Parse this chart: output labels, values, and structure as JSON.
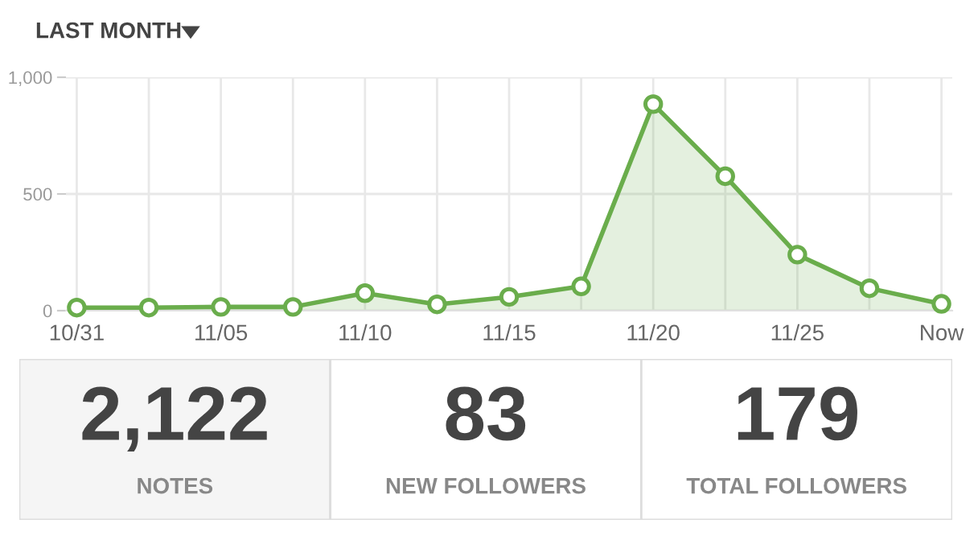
{
  "chart_data": [
    {
      "type": "area",
      "title": "LAST MONTH",
      "categories": [
        "10/31",
        null,
        "11/05",
        null,
        "11/10",
        null,
        "11/15",
        null,
        "11/20",
        null,
        "11/25",
        null,
        "Now"
      ],
      "series": [
        {
          "color": "#6aad4c",
          "values": [
            13,
            13,
            16,
            16,
            75,
            27,
            59,
            104,
            885,
            576,
            240,
            96,
            29
          ]
        }
      ],
      "ylim": [
        0,
        1000
      ],
      "yticks": [
        0,
        500,
        {
          "value": 1000,
          "label": "1,000"
        }
      ],
      "grid": true,
      "marker": "circle"
    },
    {
      "type": "other",
      "annotations": [
        "2,122",
        "NOTES",
        "83",
        "NEW FOLLOWERS",
        "179",
        "TOTAL FOLLOWERS"
      ]
    }
  ]
}
